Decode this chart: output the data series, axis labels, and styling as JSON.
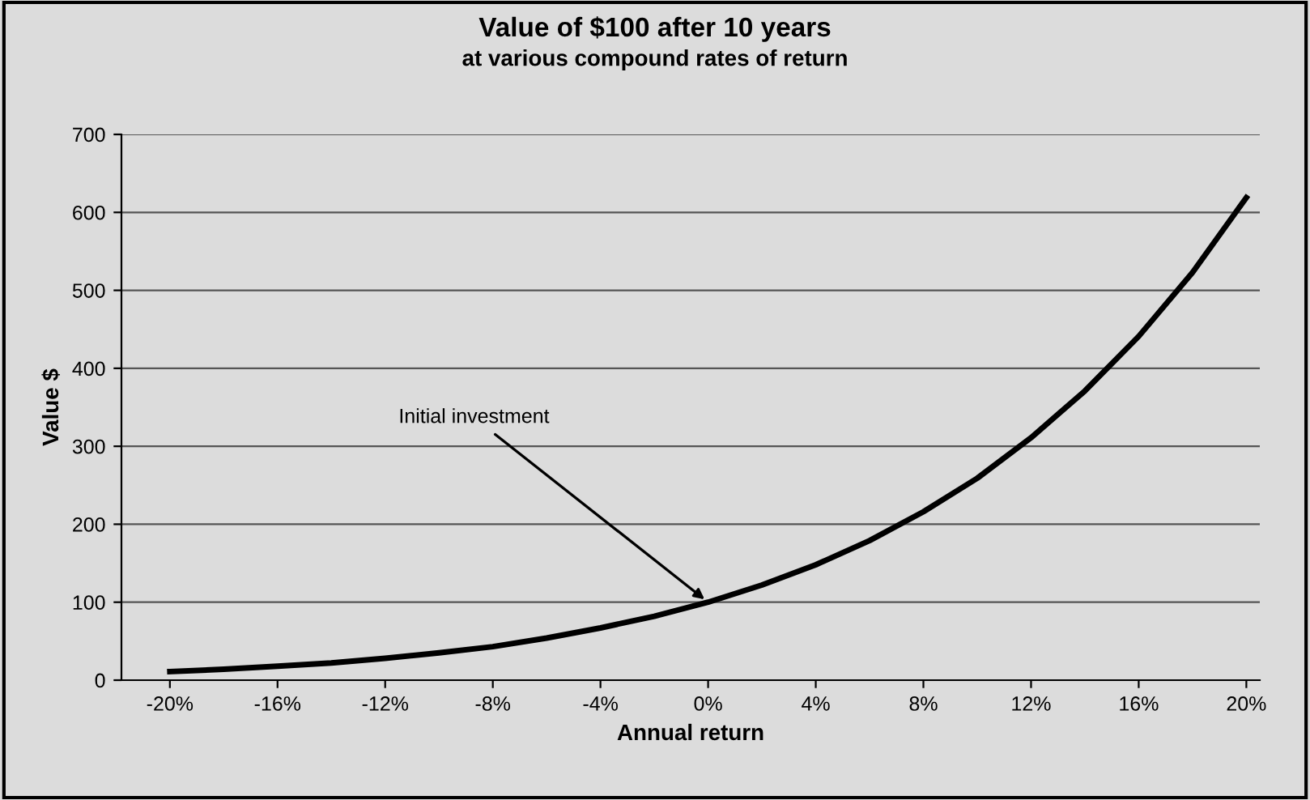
{
  "chart_data": {
    "type": "line",
    "title": "Value of $100 after 10 years",
    "subtitle": "at various compound rates of return",
    "xlabel": "Annual return",
    "ylabel": "Value $",
    "x": [
      -20,
      -18,
      -16,
      -14,
      -12,
      -10,
      -8,
      -6,
      -4,
      -2,
      0,
      2,
      4,
      6,
      8,
      10,
      12,
      14,
      16,
      18,
      20
    ],
    "series": [
      {
        "color": "#000000",
        "values": [
          11,
          14,
          18,
          22,
          28,
          35,
          43,
          54,
          67,
          82,
          100,
          122,
          148,
          179,
          216,
          259,
          311,
          371,
          441,
          523,
          619
        ]
      }
    ],
    "xlim": [
      -21.8,
      20.5
    ],
    "ylim": [
      0,
      700
    ],
    "xticks": [
      {
        "value": -20,
        "label": "-20%"
      },
      {
        "value": -16,
        "label": "-16%"
      },
      {
        "value": -12,
        "label": "-12%"
      },
      {
        "value": -8,
        "label": "-8%"
      },
      {
        "value": -4,
        "label": "-4%"
      },
      {
        "value": 0,
        "label": "0%"
      },
      {
        "value": 4,
        "label": "4%"
      },
      {
        "value": 8,
        "label": "8%"
      },
      {
        "value": 12,
        "label": "12%"
      },
      {
        "value": 16,
        "label": "16%"
      },
      {
        "value": 20,
        "label": "20%"
      }
    ],
    "yticks": [
      0,
      100,
      200,
      300,
      400,
      500,
      600,
      700
    ],
    "grid": "y",
    "legend": false,
    "marker": "none",
    "line_style": "solid",
    "annotations": [
      {
        "text": "Initial investment",
        "x": 0,
        "y": 100
      }
    ]
  }
}
